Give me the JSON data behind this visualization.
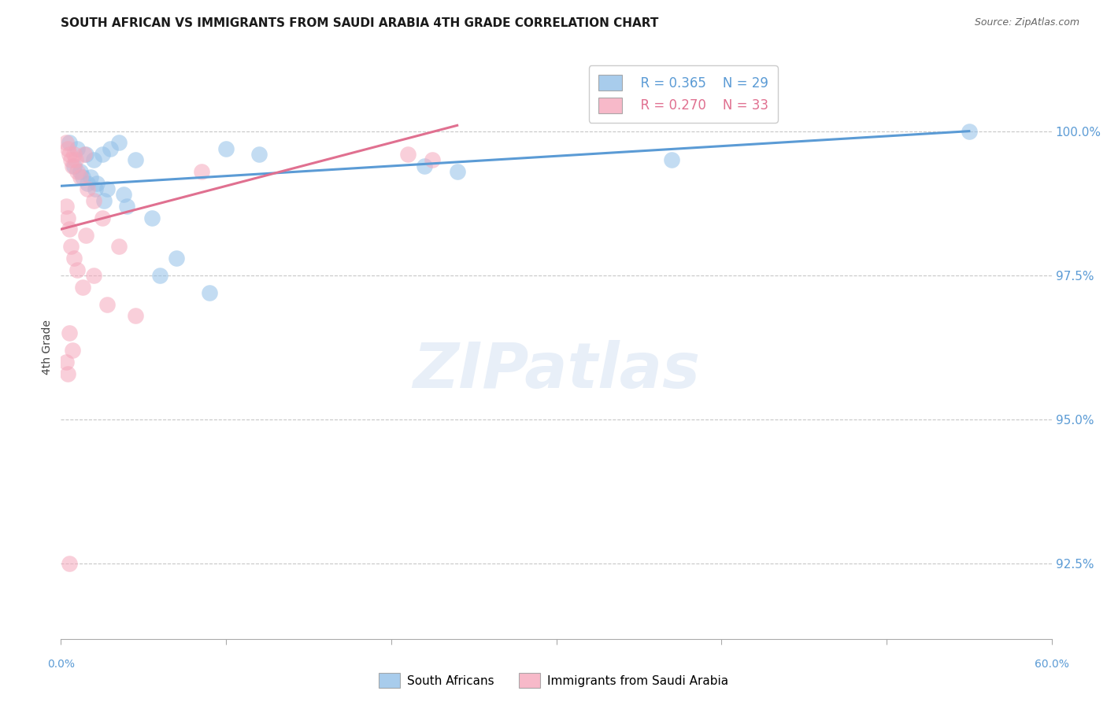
{
  "title": "SOUTH AFRICAN VS IMMIGRANTS FROM SAUDI ARABIA 4TH GRADE CORRELATION CHART",
  "source": "Source: ZipAtlas.com",
  "ylabel": "4th Grade",
  "ytick_values": [
    92.5,
    95.0,
    97.5,
    100.0
  ],
  "xlim": [
    0.0,
    60.0
  ],
  "ylim": [
    91.2,
    101.3
  ],
  "legend_r_blue": "R = 0.365",
  "legend_n_blue": "N = 29",
  "legend_r_pink": "R = 0.270",
  "legend_n_pink": "N = 33",
  "legend_label_blue": "South Africans",
  "legend_label_pink": "Immigrants from Saudi Arabia",
  "blue_color": "#92c0e8",
  "pink_color": "#f5a8bc",
  "trendline_blue_color": "#5b9bd5",
  "trendline_pink_color": "#e07090",
  "blue_scatter_x": [
    0.5,
    1.0,
    1.5,
    2.0,
    2.5,
    3.0,
    3.5,
    4.5,
    1.2,
    1.8,
    2.2,
    2.8,
    3.8,
    5.5,
    7.0,
    10.0,
    55.0,
    0.8,
    1.3,
    1.6,
    2.1,
    2.6,
    4.0,
    6.0,
    9.0,
    12.0,
    22.0,
    24.0,
    37.0
  ],
  "blue_scatter_y": [
    99.8,
    99.7,
    99.6,
    99.5,
    99.6,
    99.7,
    99.8,
    99.5,
    99.3,
    99.2,
    99.1,
    99.0,
    98.9,
    98.5,
    97.8,
    99.7,
    100.0,
    99.4,
    99.2,
    99.1,
    99.0,
    98.8,
    98.7,
    97.5,
    97.2,
    99.6,
    99.4,
    99.3,
    99.5
  ],
  "pink_scatter_x": [
    0.3,
    0.4,
    0.5,
    0.6,
    0.7,
    0.8,
    0.9,
    1.0,
    1.2,
    1.4,
    1.6,
    2.0,
    2.5,
    3.5,
    8.5,
    21.0,
    22.5,
    0.3,
    0.4,
    0.5,
    0.6,
    0.8,
    1.0,
    1.3,
    2.8,
    4.5,
    0.5,
    0.7,
    0.3,
    0.4,
    1.5,
    2.0,
    0.5
  ],
  "pink_scatter_y": [
    99.8,
    99.7,
    99.6,
    99.5,
    99.4,
    99.6,
    99.5,
    99.3,
    99.2,
    99.6,
    99.0,
    98.8,
    98.5,
    98.0,
    99.3,
    99.6,
    99.5,
    98.7,
    98.5,
    98.3,
    98.0,
    97.8,
    97.6,
    97.3,
    97.0,
    96.8,
    96.5,
    96.2,
    96.0,
    95.8,
    98.2,
    97.5,
    92.5
  ],
  "blue_trendline_x": [
    0.0,
    55.0
  ],
  "blue_trendline_y": [
    99.05,
    100.0
  ],
  "pink_trendline_x": [
    0.0,
    24.0
  ],
  "pink_trendline_y": [
    98.3,
    100.1
  ],
  "watermark_text": "ZIPatlas",
  "background_color": "#ffffff",
  "grid_color": "#c8c8c8"
}
